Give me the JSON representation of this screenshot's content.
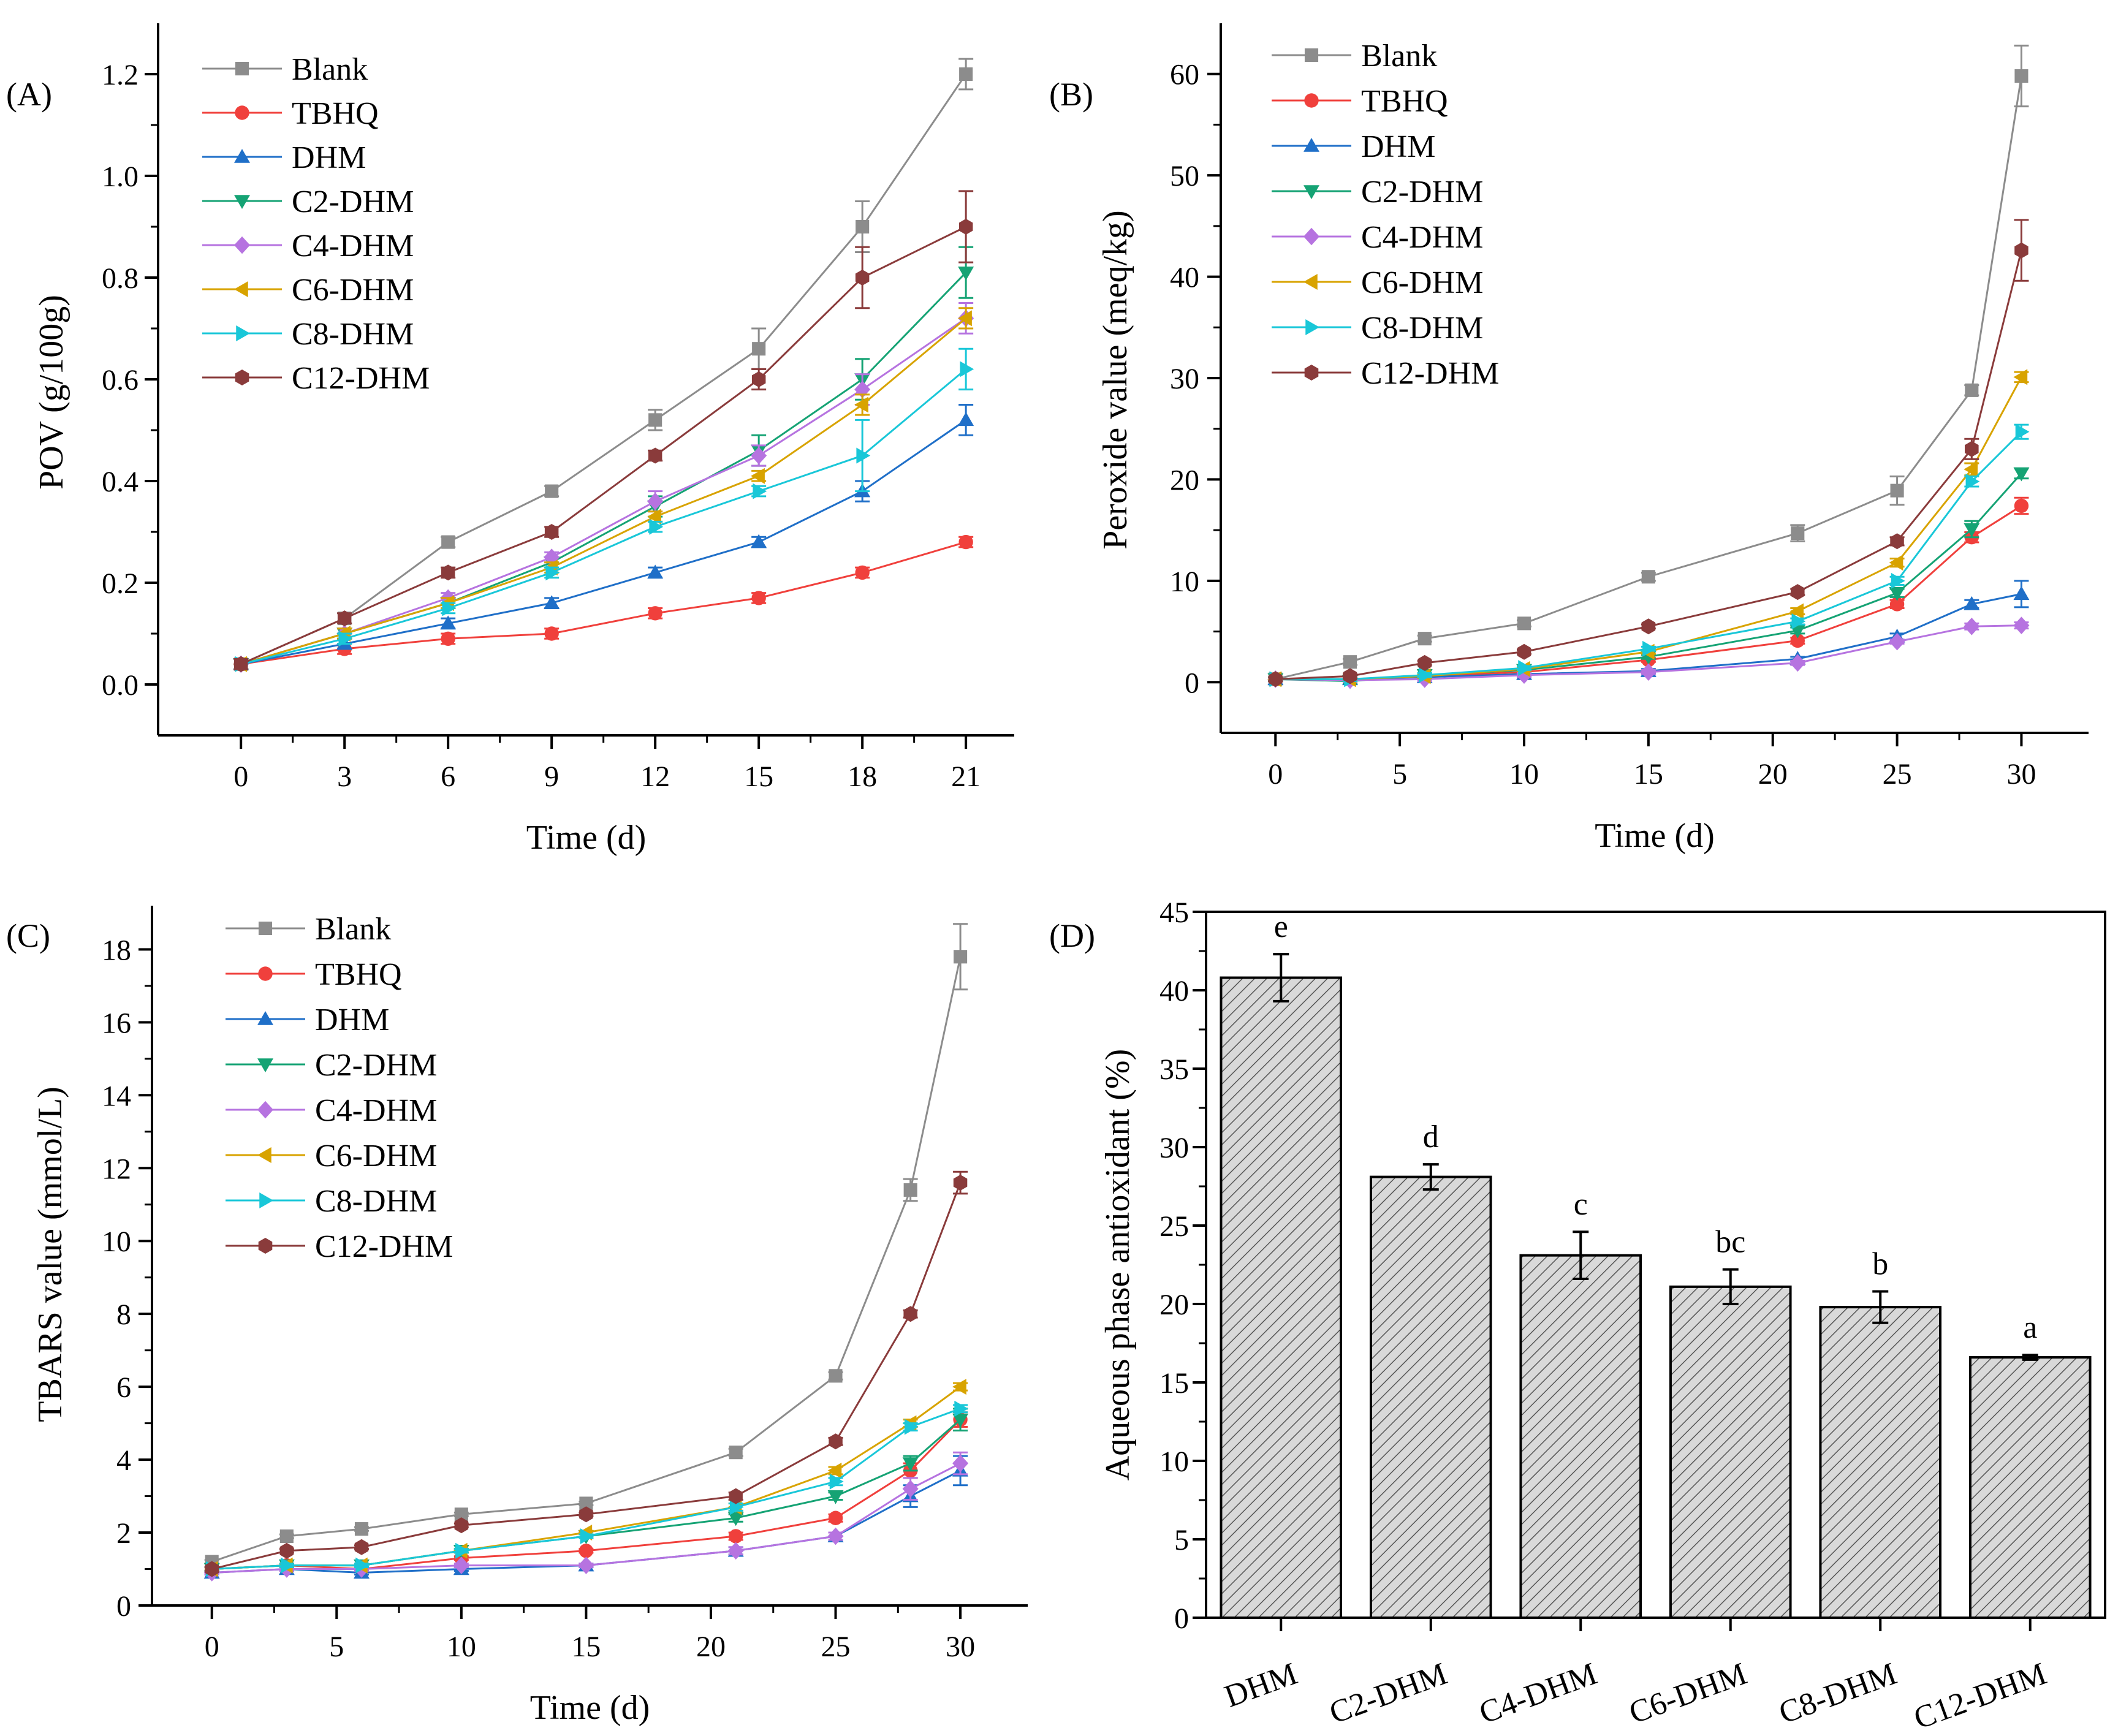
{
  "figure": {
    "marker_shapes": {
      "Blank": "square",
      "TBHQ": "circle",
      "DHM": "triangle-up",
      "C2-DHM": "triangle-down",
      "C4-DHM": "diamond",
      "C6-DHM": "triangle-left",
      "C8-DHM": "triangle-right",
      "C12-DHM": "hexagon"
    },
    "colors": {
      "Blank": "#8c8c8c",
      "TBHQ": "#f0403c",
      "DHM": "#1f6fc8",
      "C2-DHM": "#15a374",
      "C4-DHM": "#b673e0",
      "C6-DHM": "#d8a300",
      "C8-DHM": "#19c7d8",
      "C12-DHM": "#8a3b3b"
    },
    "bar_fill": "#d9d9d9"
  },
  "chart_data": [
    {
      "panel": "(A)",
      "type": "line",
      "xlabel": "Time (d)",
      "ylabel": "POV (g/100g)",
      "xlim": [
        -2.4,
        22.4
      ],
      "ylim": [
        -0.1,
        1.3
      ],
      "xticks": [
        0,
        3,
        6,
        9,
        12,
        15,
        18,
        21
      ],
      "xticklabels": [
        "0",
        "3",
        "6",
        "9",
        "12",
        "15",
        "18",
        "21"
      ],
      "yticks": [
        0.0,
        0.2,
        0.4,
        0.6,
        0.8,
        1.0,
        1.2
      ],
      "yticklabels": [
        "0.0",
        "0.2",
        "0.4",
        "0.6",
        "0.8",
        "1.0",
        "1.2"
      ],
      "x": [
        0,
        3,
        6,
        9,
        12,
        15,
        18,
        21
      ],
      "series": [
        {
          "name": "Blank",
          "values": [
            0.04,
            0.13,
            0.28,
            0.38,
            0.52,
            0.66,
            0.9,
            1.2
          ],
          "err": [
            0.01,
            0.01,
            0.01,
            0.01,
            0.02,
            0.04,
            0.05,
            0.03
          ]
        },
        {
          "name": "TBHQ",
          "values": [
            0.04,
            0.07,
            0.09,
            0.1,
            0.14,
            0.17,
            0.22,
            0.28
          ],
          "err": [
            0.01,
            0.01,
            0.01,
            0.01,
            0.01,
            0.01,
            0.01,
            0.01
          ]
        },
        {
          "name": "DHM",
          "values": [
            0.04,
            0.08,
            0.12,
            0.16,
            0.22,
            0.28,
            0.38,
            0.52
          ],
          "err": [
            0.01,
            0.01,
            0.01,
            0.01,
            0.01,
            0.01,
            0.02,
            0.03
          ]
        },
        {
          "name": "C2-DHM",
          "values": [
            0.04,
            0.1,
            0.16,
            0.24,
            0.35,
            0.46,
            0.6,
            0.81
          ],
          "err": [
            0.01,
            0.01,
            0.01,
            0.01,
            0.02,
            0.03,
            0.04,
            0.05
          ]
        },
        {
          "name": "C4-DHM",
          "values": [
            0.04,
            0.1,
            0.17,
            0.25,
            0.36,
            0.45,
            0.58,
            0.72
          ],
          "err": [
            0.01,
            0.01,
            0.01,
            0.01,
            0.02,
            0.02,
            0.03,
            0.03
          ]
        },
        {
          "name": "C6-DHM",
          "values": [
            0.04,
            0.1,
            0.16,
            0.23,
            0.33,
            0.41,
            0.55,
            0.72
          ],
          "err": [
            0.01,
            0.01,
            0.01,
            0.01,
            0.01,
            0.01,
            0.02,
            0.02
          ]
        },
        {
          "name": "C8-DHM",
          "values": [
            0.04,
            0.09,
            0.15,
            0.22,
            0.31,
            0.38,
            0.45,
            0.62
          ],
          "err": [
            0.01,
            0.01,
            0.01,
            0.01,
            0.01,
            0.01,
            0.07,
            0.04
          ]
        },
        {
          "name": "C12-DHM",
          "values": [
            0.04,
            0.13,
            0.22,
            0.3,
            0.45,
            0.6,
            0.8,
            0.9
          ],
          "err": [
            0.01,
            0.01,
            0.01,
            0.01,
            0.01,
            0.02,
            0.06,
            0.07
          ]
        }
      ]
    },
    {
      "panel": "(B)",
      "type": "line",
      "xlabel": "Time (d)",
      "ylabel": "Peroxide value (meq/kg)",
      "xlim": [
        -2.2,
        32.7
      ],
      "ylim": [
        -5,
        65
      ],
      "xticks": [
        0,
        5,
        10,
        15,
        20,
        25,
        30
      ],
      "xticklabels": [
        "0",
        "5",
        "10",
        "15",
        "20",
        "25",
        "30"
      ],
      "yticks": [
        0,
        10,
        20,
        30,
        40,
        50,
        60
      ],
      "yticklabels": [
        "0",
        "10",
        "20",
        "30",
        "40",
        "50",
        "60"
      ],
      "x": [
        0,
        3,
        6,
        10,
        15,
        21,
        25,
        28,
        30
      ],
      "series": [
        {
          "name": "Blank",
          "values": [
            0.3,
            2.0,
            4.3,
            5.8,
            10.4,
            14.7,
            18.9,
            28.8,
            59.8
          ],
          "err": [
            0.2,
            0.3,
            0.3,
            0.3,
            0.4,
            0.8,
            1.4,
            0.5,
            3.0
          ]
        },
        {
          "name": "TBHQ",
          "values": [
            0.3,
            0.3,
            0.6,
            1.0,
            2.2,
            4.1,
            7.7,
            14.3,
            17.4
          ],
          "err": [
            0.2,
            0.2,
            0.2,
            0.2,
            0.2,
            0.3,
            0.4,
            0.5,
            0.8
          ]
        },
        {
          "name": "DHM",
          "values": [
            0.3,
            0.3,
            0.5,
            0.8,
            1.1,
            2.3,
            4.5,
            7.7,
            8.7
          ],
          "err": [
            0.2,
            0.2,
            0.2,
            0.2,
            0.2,
            0.2,
            0.3,
            0.4,
            1.3
          ]
        },
        {
          "name": "C2-DHM",
          "values": [
            0.3,
            0.1,
            0.7,
            1.2,
            2.5,
            5.1,
            8.8,
            15.1,
            20.6
          ],
          "err": [
            0.2,
            0.2,
            0.2,
            0.2,
            0.2,
            0.3,
            0.4,
            0.8,
            0.5
          ]
        },
        {
          "name": "C4-DHM",
          "values": [
            0.3,
            0.2,
            0.3,
            0.7,
            1.0,
            1.9,
            4.0,
            5.5,
            5.6
          ],
          "err": [
            0.2,
            0.2,
            0.2,
            0.2,
            0.2,
            0.2,
            0.2,
            0.3,
            0.3
          ]
        },
        {
          "name": "C6-DHM",
          "values": [
            0.3,
            0.3,
            0.6,
            1.3,
            3.0,
            7.0,
            11.8,
            21.0,
            30.1
          ],
          "err": [
            0.2,
            0.2,
            0.2,
            0.2,
            0.2,
            0.3,
            0.4,
            0.6,
            0.5
          ]
        },
        {
          "name": "C8-DHM",
          "values": [
            0.3,
            0.3,
            0.7,
            1.4,
            3.3,
            6.0,
            10.0,
            19.8,
            24.7
          ],
          "err": [
            0.2,
            0.2,
            0.2,
            0.2,
            0.2,
            0.3,
            0.4,
            0.5,
            0.7
          ]
        },
        {
          "name": "C12-DHM",
          "values": [
            0.3,
            0.6,
            1.9,
            3.0,
            5.5,
            8.9,
            13.9,
            23.0,
            42.6
          ],
          "err": [
            0.2,
            0.2,
            0.2,
            0.2,
            0.2,
            0.3,
            0.4,
            1.0,
            3.0
          ]
        }
      ]
    },
    {
      "panel": "(C)",
      "type": "line",
      "xlabel": "Time (d)",
      "ylabel": "TBARS value (mmol/L)",
      "xlim": [
        -2.4,
        32.7
      ],
      "ylim": [
        0,
        19.2
      ],
      "xticks": [
        0,
        5,
        10,
        15,
        20,
        25,
        30
      ],
      "xticklabels": [
        "0",
        "5",
        "10",
        "15",
        "20",
        "25",
        "30"
      ],
      "yticks": [
        0,
        2,
        4,
        6,
        8,
        10,
        12,
        14,
        16,
        18
      ],
      "yticklabels": [
        "0",
        "2",
        "4",
        "6",
        "8",
        "10",
        "12",
        "14",
        "16",
        "18"
      ],
      "x": [
        0,
        3,
        6,
        10,
        15,
        21,
        25,
        28,
        30
      ],
      "series": [
        {
          "name": "Blank",
          "values": [
            1.2,
            1.9,
            2.1,
            2.5,
            2.8,
            4.2,
            6.3,
            11.4,
            17.8
          ],
          "err": [
            0.05,
            0.05,
            0.05,
            0.05,
            0.05,
            0.1,
            0.1,
            0.3,
            0.9
          ]
        },
        {
          "name": "TBHQ",
          "values": [
            1.0,
            1.1,
            1.0,
            1.3,
            1.5,
            1.9,
            2.4,
            3.7,
            5.1
          ],
          "err": [
            0.05,
            0.05,
            0.05,
            0.05,
            0.05,
            0.1,
            0.1,
            0.2,
            0.2
          ]
        },
        {
          "name": "DHM",
          "values": [
            0.9,
            1.0,
            0.9,
            1.0,
            1.1,
            1.5,
            1.9,
            3.0,
            3.7
          ],
          "err": [
            0.05,
            0.05,
            0.05,
            0.05,
            0.05,
            0.1,
            0.1,
            0.3,
            0.4
          ]
        },
        {
          "name": "C2-DHM",
          "values": [
            1.0,
            1.1,
            1.1,
            1.5,
            1.9,
            2.4,
            3.0,
            3.9,
            5.1
          ],
          "err": [
            0.05,
            0.05,
            0.05,
            0.05,
            0.05,
            0.1,
            0.1,
            0.2,
            0.3
          ]
        },
        {
          "name": "C4-DHM",
          "values": [
            0.9,
            1.0,
            1.0,
            1.1,
            1.1,
            1.5,
            1.9,
            3.2,
            3.9
          ],
          "err": [
            0.05,
            0.05,
            0.05,
            0.05,
            0.05,
            0.1,
            0.1,
            0.3,
            0.3
          ]
        },
        {
          "name": "C6-DHM",
          "values": [
            1.0,
            1.1,
            1.1,
            1.5,
            2.0,
            2.7,
            3.7,
            5.0,
            6.0
          ],
          "err": [
            0.05,
            0.05,
            0.05,
            0.05,
            0.05,
            0.1,
            0.1,
            0.1,
            0.1
          ]
        },
        {
          "name": "C8-DHM",
          "values": [
            1.0,
            1.1,
            1.1,
            1.5,
            1.9,
            2.7,
            3.4,
            4.9,
            5.4
          ],
          "err": [
            0.05,
            0.05,
            0.05,
            0.05,
            0.05,
            0.1,
            0.1,
            0.1,
            0.1
          ]
        },
        {
          "name": "C12-DHM",
          "values": [
            1.0,
            1.5,
            1.6,
            2.2,
            2.5,
            3.0,
            4.5,
            8.0,
            11.6
          ],
          "err": [
            0.05,
            0.05,
            0.05,
            0.05,
            0.05,
            0.1,
            0.1,
            0.1,
            0.3
          ]
        }
      ]
    },
    {
      "panel": "(D)",
      "type": "bar",
      "ylabel": "Aqueous phase antioxidant (%)",
      "ylim": [
        0,
        45
      ],
      "yticks": [
        0,
        5,
        10,
        15,
        20,
        25,
        30,
        35,
        40,
        45
      ],
      "yticklabels": [
        "0",
        "5",
        "10",
        "15",
        "20",
        "25",
        "30",
        "35",
        "40",
        "45"
      ],
      "categories": [
        "DHM",
        "C2-DHM",
        "C4-DHM",
        "C6-DHM",
        "C8-DHM",
        "C12-DHM"
      ],
      "values": [
        40.8,
        28.1,
        23.1,
        21.1,
        19.8,
        16.6
      ],
      "err": [
        1.5,
        0.8,
        1.5,
        1.1,
        1.0,
        0.15
      ],
      "significance": [
        "e",
        "d",
        "c",
        "bc",
        "b",
        "a"
      ]
    }
  ]
}
